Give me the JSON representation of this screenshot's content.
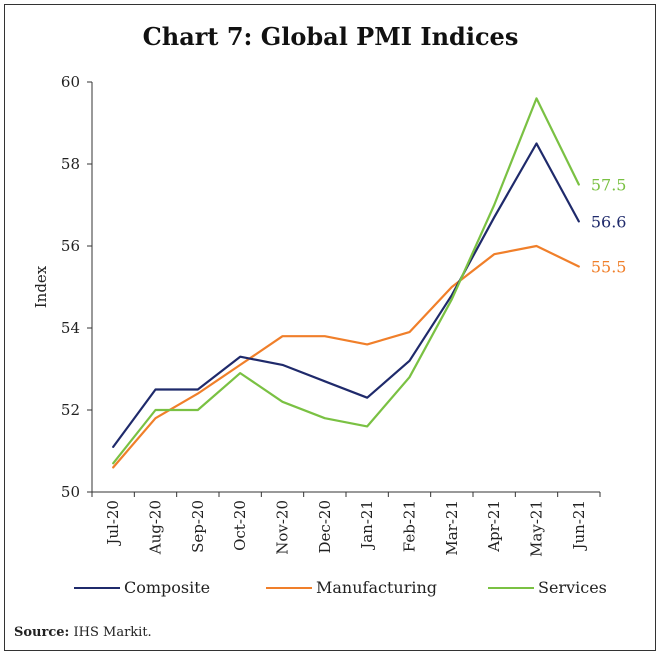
{
  "title": "Chart 7: Global PMI Indices",
  "source": {
    "label": "Source:",
    "text": "IHS Markit."
  },
  "chart_data": {
    "type": "line",
    "title": "Chart 7: Global PMI Indices",
    "xlabel": "",
    "ylabel": "Index",
    "ylim": [
      50,
      60
    ],
    "yticks": [
      50,
      52,
      54,
      56,
      58,
      60
    ],
    "grid": false,
    "legend": "bottom",
    "categories": [
      "Jul-20",
      "Aug-20",
      "Sep-20",
      "Oct-20",
      "Nov-20",
      "Dec-20",
      "Jan-21",
      "Feb-21",
      "Mar-21",
      "Apr-21",
      "May-21",
      "Jun-21"
    ],
    "series": [
      {
        "name": "Composite",
        "color": "#1f2a6b",
        "values": [
          51.1,
          52.5,
          52.5,
          53.3,
          53.1,
          52.7,
          52.3,
          53.2,
          54.8,
          56.7,
          58.5,
          56.6
        ],
        "end_label": "56.6"
      },
      {
        "name": "Manufacturing",
        "color": "#f07f2a",
        "values": [
          50.6,
          51.8,
          52.4,
          53.1,
          53.8,
          53.8,
          53.6,
          53.9,
          55.0,
          55.8,
          56.0,
          55.5
        ],
        "end_label": "55.5"
      },
      {
        "name": "Services",
        "color": "#7ac143",
        "values": [
          50.7,
          52.0,
          52.0,
          52.9,
          52.2,
          51.8,
          51.6,
          52.8,
          54.7,
          57.0,
          59.6,
          57.5
        ],
        "end_label": "57.5"
      }
    ]
  }
}
